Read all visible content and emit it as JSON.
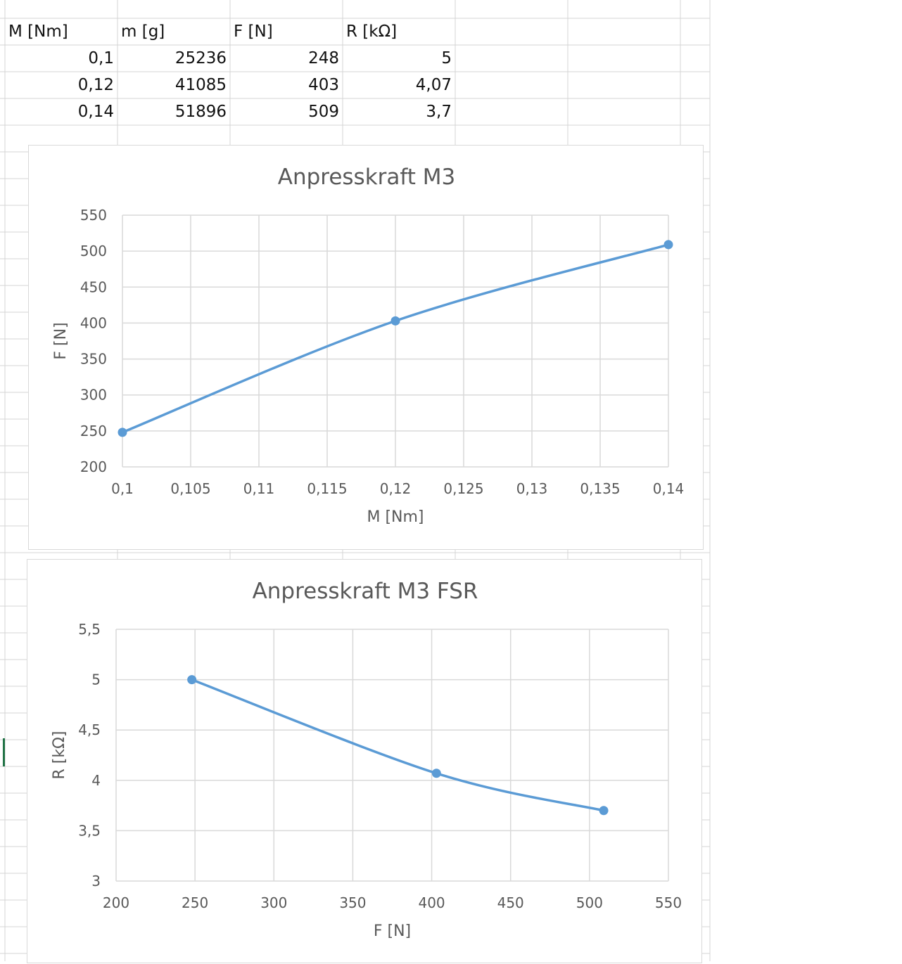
{
  "sheet": {
    "headers": [
      "M [Nm]",
      "m [g]",
      "F [N]",
      "R [kΩ]"
    ],
    "rows": [
      [
        "0,1",
        "25236",
        "248",
        "5"
      ],
      [
        "0,12",
        "41085",
        "403",
        "4,07"
      ],
      [
        "0,14",
        "51896",
        "509",
        "3,7"
      ]
    ]
  },
  "chart_data": [
    {
      "type": "scatter",
      "title": "Anpresskraft M3",
      "xlabel": "M [Nm]",
      "ylabel": "F [N]",
      "xlim": [
        0.1,
        0.14
      ],
      "ylim": [
        200,
        550
      ],
      "xticks": [
        "0,1",
        "0,105",
        "0,11",
        "0,115",
        "0,12",
        "0,125",
        "0,13",
        "0,135",
        "0,14"
      ],
      "yticks": [
        "200",
        "250",
        "300",
        "350",
        "400",
        "450",
        "500",
        "550"
      ],
      "grid": true,
      "smooth_line": true,
      "series": [
        {
          "x": [
            0.1,
            0.12,
            0.14
          ],
          "y": [
            248,
            403,
            509
          ],
          "color": "#5B9BD5"
        }
      ]
    },
    {
      "type": "scatter",
      "title": "Anpresskraft M3 FSR",
      "xlabel": "F [N]",
      "ylabel": "R [kΩ]",
      "xlim": [
        200,
        550
      ],
      "ylim": [
        3,
        5.5
      ],
      "xticks": [
        "200",
        "250",
        "300",
        "350",
        "400",
        "450",
        "500",
        "550"
      ],
      "yticks": [
        "3",
        "3,5",
        "4",
        "4,5",
        "5",
        "5,5"
      ],
      "grid": true,
      "smooth_line": true,
      "series": [
        {
          "x": [
            248,
            403,
            509
          ],
          "y": [
            5,
            4.07,
            3.7
          ],
          "color": "#5B9BD5"
        }
      ]
    }
  ],
  "colors": {
    "series": "#5B9BD5",
    "gridline": "#d9d9d9",
    "sheet_grid": "#d4d4d4",
    "axis_text": "#595959",
    "active_cell": "#217346"
  }
}
